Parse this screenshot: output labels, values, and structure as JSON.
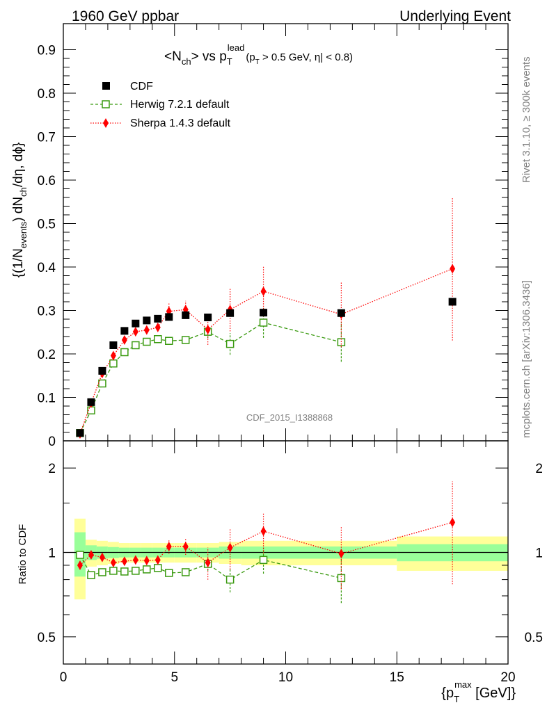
{
  "header": {
    "left": "1960 GeV ppbar",
    "right": "Underlying Event"
  },
  "side": {
    "rivet": "Rivet 3.1.10, ≥ 300k events",
    "mcplots": "mcplots.cern.ch [arXiv:1306.3436]"
  },
  "analysis_id": "CDF_2015_I1388868",
  "colors": {
    "cdf": "#000000",
    "herwig": "#3a9a10",
    "sherpa": "#ff0000",
    "band_inner": "#99ff99",
    "band_outer": "#ffff99"
  },
  "chart_data": [
    {
      "type": "scatter",
      "title_parts": {
        "base": "<N",
        "ch": "ch",
        "vs": "> vs p",
        "T": "T",
        "lead": "lead",
        "cut1": "(p",
        "cut2": " > 0.5 GeV, ",
        "eta": "η",
        "cut3": "| < 0.8)"
      },
      "ylabel_parts": {
        "a": "{(1/N",
        "events": "events",
        "b": ") dN",
        "ch": "ch",
        "c": "/dη, dϕ}"
      },
      "xlim": [
        0,
        20
      ],
      "ylim": [
        0,
        0.96
      ],
      "y_ticks": [
        "0",
        "0.1",
        "0.2",
        "0.3",
        "0.4",
        "0.5",
        "0.6",
        "0.7",
        "0.8",
        "0.9"
      ],
      "y_tick_values": [
        0,
        0.1,
        0.2,
        0.3,
        0.4,
        0.5,
        0.6,
        0.7,
        0.8,
        0.9
      ],
      "legend_position": "top-left",
      "x": [
        0.75,
        1.25,
        1.75,
        2.25,
        2.75,
        3.25,
        3.75,
        4.25,
        4.75,
        5.5,
        6.5,
        7.5,
        9.0,
        12.5,
        17.5
      ],
      "series": [
        {
          "name": "CDF",
          "marker": "square",
          "values": [
            0.018,
            0.089,
            0.161,
            0.22,
            0.253,
            0.27,
            0.277,
            0.281,
            0.285,
            0.289,
            0.284,
            0.294,
            0.295,
            0.294,
            0.32
          ]
        },
        {
          "name": "Herwig 7.2.1 default",
          "marker": "open-square",
          "line": "dashed",
          "values": [
            0.018,
            0.07,
            0.132,
            0.178,
            0.204,
            0.22,
            0.228,
            0.234,
            0.23,
            0.232,
            0.251,
            0.223,
            0.272,
            0.227,
            null
          ],
          "errors": [
            0.003,
            0.004,
            0.005,
            0.006,
            0.006,
            0.006,
            0.006,
            0.007,
            0.006,
            0.007,
            0.015,
            0.025,
            0.035,
            0.045,
            null
          ]
        },
        {
          "name": "Sherpa 1.4.3 default",
          "marker": "diamond",
          "line": "dotted",
          "values": [
            0.016,
            0.087,
            0.155,
            0.196,
            0.232,
            0.251,
            0.255,
            0.261,
            0.298,
            0.302,
            0.256,
            0.302,
            0.344,
            0.291,
            0.396
          ],
          "errors": [
            0.003,
            0.004,
            0.006,
            0.006,
            0.006,
            0.007,
            0.007,
            0.008,
            0.018,
            0.02,
            0.035,
            0.05,
            0.058,
            0.075,
            0.165
          ]
        }
      ]
    },
    {
      "type": "scatter",
      "ylabel": "Ratio to CDF",
      "xlabel_parts": {
        "a": "{p",
        "T": "T",
        "max": "max",
        "b": " [GeV]}"
      },
      "xlim": [
        0,
        20
      ],
      "ylim": [
        0.4,
        2.5
      ],
      "log_y": true,
      "x_ticks": [
        "0",
        "5",
        "10",
        "15",
        "20"
      ],
      "x_tick_values": [
        0,
        5,
        10,
        15,
        20
      ],
      "y_ticks": [
        "0.5",
        "1",
        "2"
      ],
      "y_tick_values": [
        0.5,
        1,
        2
      ],
      "bands": {
        "edges": [
          0.5,
          1.0,
          1.5,
          2.0,
          2.5,
          3.0,
          3.5,
          4.0,
          4.5,
          5.0,
          6.0,
          7.0,
          8.0,
          10.0,
          15.0,
          20.0
        ],
        "inner": [
          0.18,
          0.06,
          0.05,
          0.045,
          0.04,
          0.04,
          0.04,
          0.04,
          0.04,
          0.04,
          0.04,
          0.05,
          0.05,
          0.05,
          0.07
        ],
        "outer": [
          0.32,
          0.11,
          0.1,
          0.09,
          0.08,
          0.08,
          0.08,
          0.08,
          0.08,
          0.08,
          0.08,
          0.09,
          0.1,
          0.1,
          0.14
        ]
      },
      "x": [
        0.75,
        1.25,
        1.75,
        2.25,
        2.75,
        3.25,
        3.75,
        4.25,
        4.75,
        5.5,
        6.5,
        7.5,
        9.0,
        12.5,
        17.5
      ],
      "series": [
        {
          "name": "Herwig 7.2.1 default",
          "values": [
            0.98,
            0.83,
            0.85,
            0.86,
            0.855,
            0.86,
            0.87,
            0.88,
            0.845,
            0.85,
            0.91,
            0.8,
            0.94,
            0.81,
            null
          ],
          "errors": [
            0.01,
            0.01,
            0.01,
            0.01,
            0.01,
            0.01,
            0.01,
            0.01,
            0.01,
            0.01,
            0.05,
            0.08,
            0.1,
            0.15,
            null
          ]
        },
        {
          "name": "Sherpa 1.4.3 default",
          "values": [
            0.9,
            0.98,
            0.96,
            0.92,
            0.93,
            0.94,
            0.935,
            0.94,
            1.05,
            1.05,
            0.92,
            1.04,
            1.19,
            0.99,
            1.28
          ],
          "errors": [
            0.01,
            0.01,
            0.01,
            0.01,
            0.01,
            0.01,
            0.02,
            0.02,
            0.06,
            0.07,
            0.12,
            0.17,
            0.2,
            0.25,
            0.51
          ]
        }
      ]
    }
  ]
}
